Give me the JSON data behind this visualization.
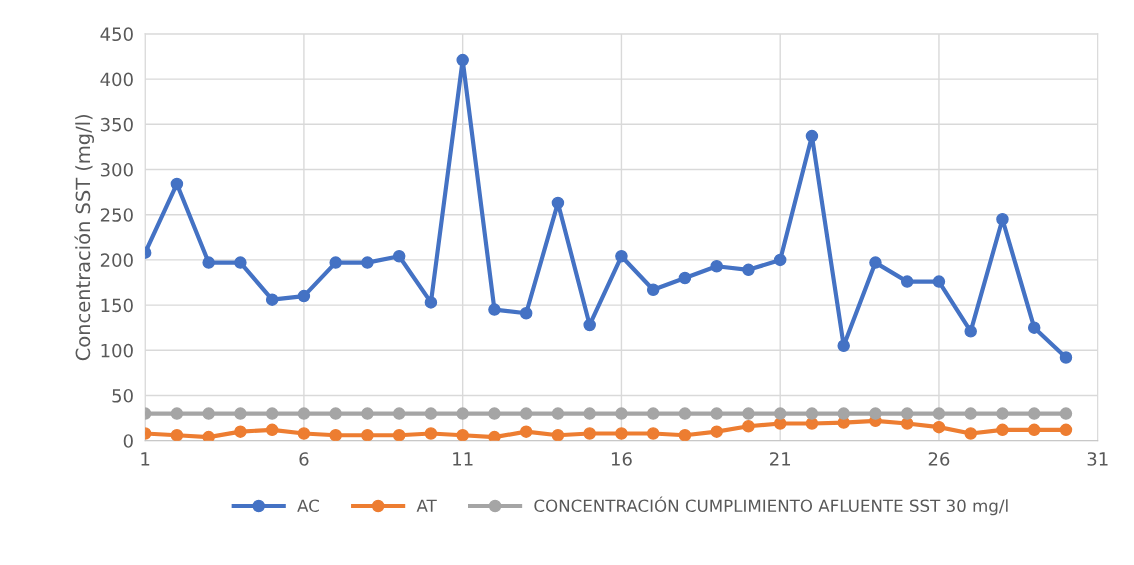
{
  "chart_data": {
    "type": "line",
    "ylabel": "Concentración SST (mg/l)",
    "x": [
      1,
      2,
      3,
      4,
      5,
      6,
      7,
      8,
      9,
      10,
      11,
      12,
      13,
      14,
      15,
      16,
      17,
      18,
      19,
      20,
      21,
      22,
      23,
      24,
      25,
      26,
      27,
      28,
      29,
      30
    ],
    "xlim": [
      1,
      31
    ],
    "xticks": [
      1,
      6,
      11,
      16,
      21,
      26,
      31
    ],
    "ylim": [
      0,
      450
    ],
    "yticks": [
      0,
      50,
      100,
      150,
      200,
      250,
      300,
      350,
      400,
      450
    ],
    "grid": true,
    "legend": "bottom",
    "marker": "circle",
    "line_style": "solid",
    "series": [
      {
        "name": "AC",
        "color": "#4472c4",
        "values": [
          208,
          284,
          197,
          197,
          156,
          160,
          197,
          197,
          204,
          153,
          421,
          145,
          141,
          263,
          128,
          204,
          167,
          180,
          193,
          189,
          200,
          337,
          105,
          197,
          176,
          176,
          121,
          245,
          125,
          92
        ]
      },
      {
        "name": "AT",
        "color": "#ed7d31",
        "values": [
          8,
          6,
          4,
          10,
          12,
          8,
          6,
          6,
          6,
          8,
          6,
          4,
          10,
          6,
          8,
          8,
          8,
          6,
          10,
          16,
          19,
          19,
          20,
          22,
          19,
          15,
          8,
          12,
          12,
          12
        ]
      },
      {
        "name": "CONCENTRACIÓN CUMPLIMIENTO AFLUENTE SST 30 mg/l",
        "color": "#a5a5a5",
        "values": [
          30,
          30,
          30,
          30,
          30,
          30,
          30,
          30,
          30,
          30,
          30,
          30,
          30,
          30,
          30,
          30,
          30,
          30,
          30,
          30,
          30,
          30,
          30,
          30,
          30,
          30,
          30,
          30,
          30,
          30
        ]
      }
    ]
  }
}
